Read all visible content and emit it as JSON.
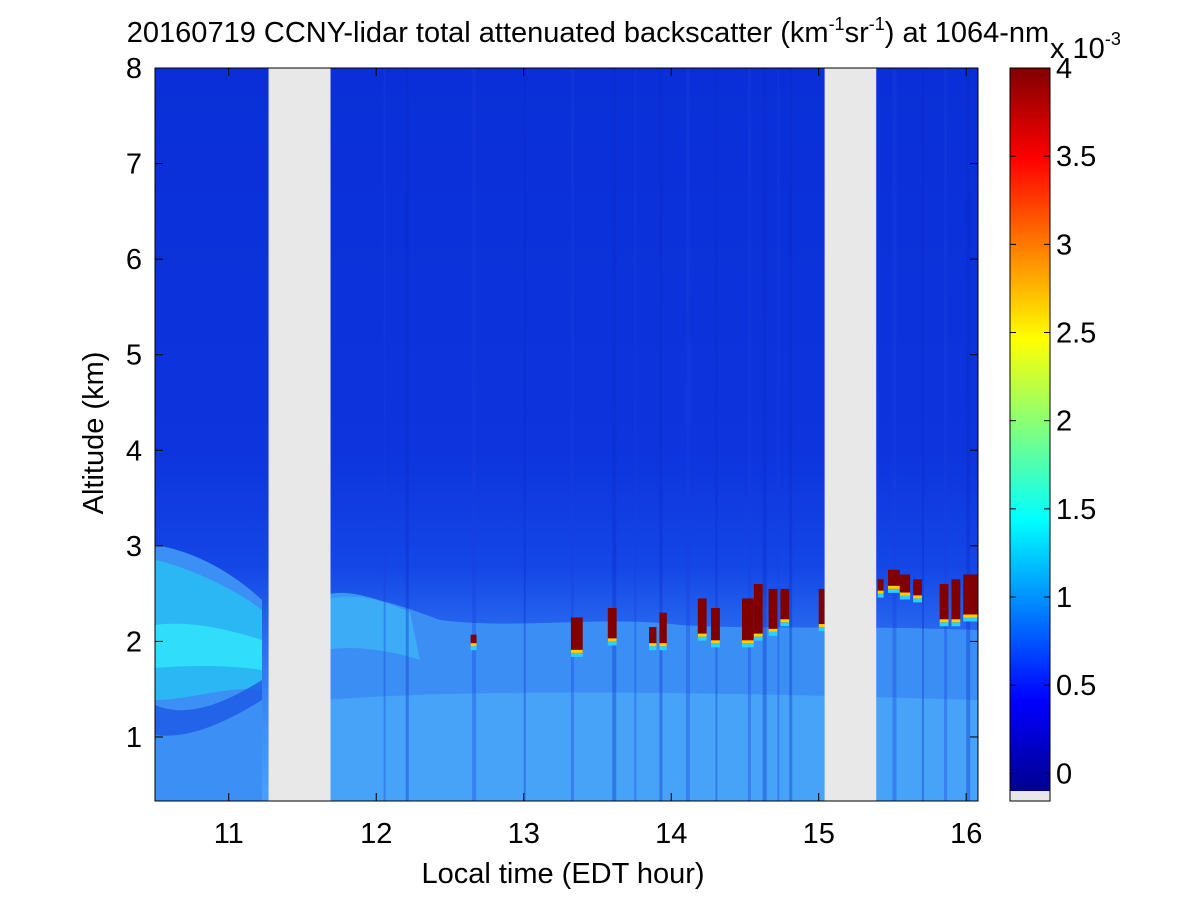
{
  "chart_data": {
    "type": "heatmap",
    "title": {
      "main": "20160719 CCNY-lidar total attenuated backscatter (km",
      "sup1": "-1",
      "mid": "sr",
      "sup2": "-1",
      "end": ") at 1064-nm"
    },
    "xlabel": "Local time (EDT hour)",
    "ylabel": "Altitude (km)",
    "xlim": [
      10.5,
      16.08
    ],
    "ylim": [
      0.33,
      8
    ],
    "xticks": [
      "11",
      "12",
      "13",
      "14",
      "15",
      "16"
    ],
    "yticks": [
      "1",
      "2",
      "3",
      "4",
      "5",
      "6",
      "7",
      "8"
    ],
    "missing_data_gaps": [
      [
        11.27,
        11.69
      ],
      [
        15.04,
        15.39
      ]
    ],
    "colorbar": {
      "colormap": "jet",
      "range": [
        -0.1,
        4
      ],
      "ticks": [
        "0",
        "0.5",
        "1",
        "1.5",
        "2",
        "2.5",
        "3",
        "3.5",
        "4"
      ],
      "exponent_label": {
        "base": "x 10",
        "exp": "-3"
      },
      "missing_color": "#e8e8e8"
    },
    "features": [
      {
        "name": "aerosol layer top",
        "start_hour": 10.5,
        "end_hour": 11.27,
        "top_km": 3.0
      },
      {
        "name": "cloud bases",
        "start_hour": 12.65,
        "end_hour": 16.08,
        "altitude_km": [
          1.9,
          2.7
        ]
      }
    ]
  }
}
